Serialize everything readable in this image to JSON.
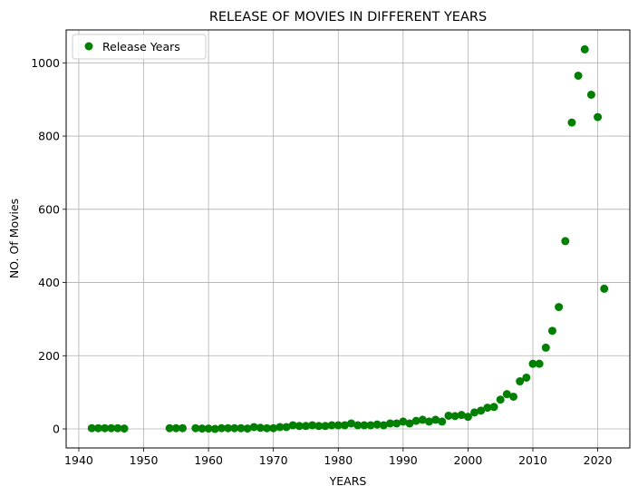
{
  "chart_data": {
    "type": "scatter",
    "title": "RELEASE OF MOVIES IN DIFFERENT YEARS",
    "xlabel": "YEARS",
    "ylabel": "NO. Of Movies",
    "xlim": [
      1938.05,
      2024.95
    ],
    "ylim": [
      -52,
      1090
    ],
    "xticks": [
      1940,
      1950,
      1960,
      1970,
      1980,
      1990,
      2000,
      2010,
      2020
    ],
    "yticks": [
      0,
      200,
      400,
      600,
      800,
      1000
    ],
    "grid": true,
    "legend_position": "top-left",
    "series": [
      {
        "name": "Release Years",
        "color": "#008000",
        "x": [
          1942,
          1943,
          1944,
          1945,
          1946,
          1947,
          1954,
          1955,
          1956,
          1958,
          1959,
          1960,
          1961,
          1962,
          1963,
          1964,
          1965,
          1966,
          1967,
          1968,
          1969,
          1970,
          1971,
          1972,
          1973,
          1974,
          1975,
          1976,
          1977,
          1978,
          1979,
          1980,
          1981,
          1982,
          1983,
          1984,
          1985,
          1986,
          1987,
          1988,
          1989,
          1990,
          1991,
          1992,
          1993,
          1994,
          1995,
          1996,
          1997,
          1998,
          1999,
          2000,
          2001,
          2002,
          2003,
          2004,
          2005,
          2006,
          2007,
          2008,
          2009,
          2010,
          2011,
          2012,
          2013,
          2014,
          2015,
          2016,
          2017,
          2018,
          2019,
          2020,
          2021
        ],
        "y": [
          2,
          2,
          2,
          2,
          2,
          1,
          2,
          2,
          2,
          2,
          1,
          1,
          0,
          2,
          2,
          2,
          2,
          1,
          5,
          3,
          2,
          2,
          5,
          5,
          10,
          8,
          8,
          10,
          8,
          8,
          10,
          10,
          10,
          15,
          10,
          10,
          10,
          12,
          10,
          15,
          15,
          20,
          15,
          22,
          25,
          20,
          25,
          20,
          36,
          35,
          38,
          33,
          45,
          50,
          58,
          60,
          80,
          95,
          88,
          130,
          140,
          178,
          178,
          222,
          268,
          333,
          513,
          837,
          965,
          1037,
          913,
          852,
          383
        ]
      }
    ]
  }
}
